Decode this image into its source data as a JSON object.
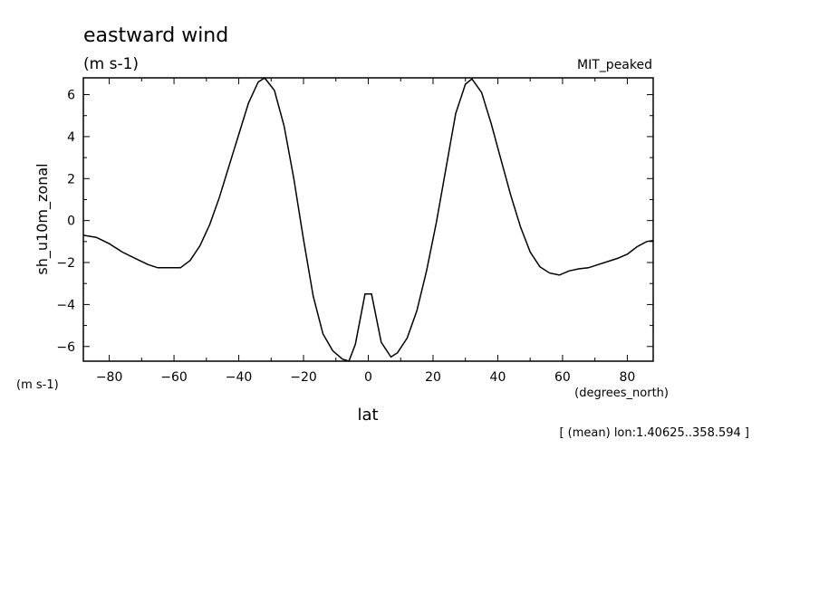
{
  "chart_data": {
    "type": "line",
    "title": "eastward wind",
    "units": "(m s-1)",
    "dataset_label": "MIT_peaked",
    "ylabel": "sh_u10m_zonal",
    "yunits": "(m s-1)",
    "xlabel": "lat",
    "xunits": "(degrees_north)",
    "footnote": "[ (mean) lon:1.40625..358.594 ]",
    "xlim": [
      -88,
      88
    ],
    "ylim": [
      -6.7,
      6.8
    ],
    "grid": false,
    "xticks": [
      -80,
      -60,
      -40,
      -20,
      0,
      20,
      40,
      60,
      80
    ],
    "yticks": [
      -6,
      -4,
      -2,
      0,
      2,
      4,
      6
    ],
    "series": [
      {
        "x": [
          -88,
          -84,
          -80,
          -76,
          -72,
          -68,
          -65,
          -62,
          -58,
          -55,
          -52,
          -49,
          -46,
          -43,
          -40,
          -37,
          -34,
          -32,
          -29,
          -26,
          -23,
          -20,
          -17,
          -14,
          -11,
          -8,
          -6,
          -4,
          -1,
          1,
          4,
          7,
          9,
          12,
          15,
          18,
          21,
          24,
          27,
          30,
          32,
          35,
          38,
          41,
          44,
          47,
          50,
          53,
          56,
          59,
          62,
          65,
          68,
          71,
          74,
          77,
          80,
          83,
          86,
          88
        ],
        "y": [
          -0.7,
          -0.8,
          -1.1,
          -1.5,
          -1.8,
          -2.1,
          -2.25,
          -2.25,
          -2.25,
          -1.9,
          -1.2,
          -0.2,
          1.1,
          2.6,
          4.1,
          5.6,
          6.6,
          6.8,
          6.2,
          4.5,
          2.0,
          -0.9,
          -3.6,
          -5.4,
          -6.2,
          -6.6,
          -6.7,
          -5.9,
          -3.5,
          -3.5,
          -5.8,
          -6.5,
          -6.3,
          -5.6,
          -4.3,
          -2.4,
          -0.1,
          2.5,
          5.1,
          6.5,
          6.75,
          6.1,
          4.6,
          2.9,
          1.2,
          -0.3,
          -1.5,
          -2.2,
          -2.5,
          -2.6,
          -2.4,
          -2.3,
          -2.25,
          -2.1,
          -1.95,
          -1.8,
          -1.6,
          -1.25,
          -1.0,
          -0.95
        ]
      }
    ]
  }
}
